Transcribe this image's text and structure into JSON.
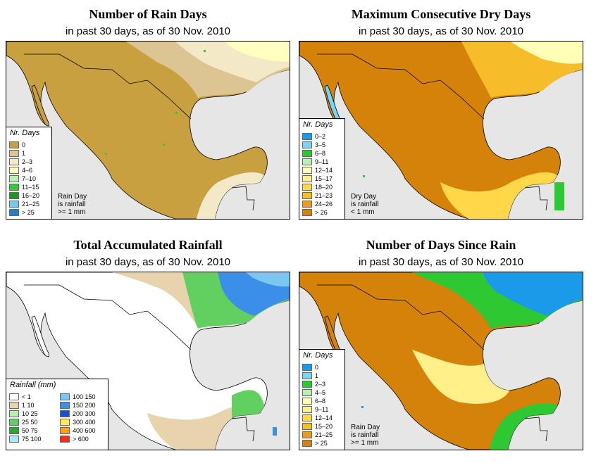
{
  "panels": [
    {
      "title": "Number of Rain Days",
      "subtitle": "in past 30 days, as of  30 Nov. 2010",
      "legend_title": "Nr. Days",
      "note": [
        "Rain Day",
        "is rainfall",
        ">= 1 mm"
      ],
      "classes": [
        {
          "label": "0",
          "color": "#c8a040"
        },
        {
          "label": "1",
          "color": "#dcc592"
        },
        {
          "label": "2–3",
          "color": "#f4e9c6"
        },
        {
          "label": "4–6",
          "color": "#ffffc0"
        },
        {
          "label": "7–10",
          "color": "#b6f2b0"
        },
        {
          "label": "11–15",
          "color": "#36c83a"
        },
        {
          "label": "16–20",
          "color": "#1a9a1e"
        },
        {
          "label": "21–25",
          "color": "#78c8f0"
        },
        {
          "label": "> 25",
          "color": "#2080c8"
        }
      ]
    },
    {
      "title": "Maximum Consecutive Dry Days",
      "subtitle": "in past 30 days, as of  30 Nov. 2010",
      "legend_title": "Nr. Days",
      "note": [
        "Dry Day",
        "is rainfall",
        "< 1 mm"
      ],
      "classes": [
        {
          "label": "0–2",
          "color": "#1a9ae8"
        },
        {
          "label": "3–5",
          "color": "#7ad4f5"
        },
        {
          "label": "6–8",
          "color": "#2ec832"
        },
        {
          "label": "9–11",
          "color": "#b8f0b0"
        },
        {
          "label": "12–14",
          "color": "#ffffb8"
        },
        {
          "label": "15–17",
          "color": "#fff08a"
        },
        {
          "label": "18–20",
          "color": "#ffd84a"
        },
        {
          "label": "21–23",
          "color": "#f7bc2a"
        },
        {
          "label": "24–26",
          "color": "#eb9c16"
        },
        {
          "label": "> 26",
          "color": "#d4820a"
        }
      ]
    },
    {
      "title": "Total Accumulated Rainfall",
      "subtitle": "in past 30 days, as of  30 Nov. 2010",
      "legend_title": "Rainfall (mm)",
      "classes": [
        {
          "label": "< 1",
          "color": "#ffffff"
        },
        {
          "label": "1    10",
          "color": "#e8d4ac"
        },
        {
          "label": "10    25",
          "color": "#b8f0b0"
        },
        {
          "label": "25    50",
          "color": "#62d060"
        },
        {
          "label": "50    75",
          "color": "#28a830"
        },
        {
          "label": "75    100",
          "color": "#a8e8f8"
        },
        {
          "label": "100    150",
          "color": "#7ac8f2"
        },
        {
          "label": "150    200",
          "color": "#3a90e8"
        },
        {
          "label": "200    300",
          "color": "#1a50d0"
        },
        {
          "label": "300    400",
          "color": "#ffe85a"
        },
        {
          "label": "400    600",
          "color": "#ffa018"
        },
        {
          "label": "> 600",
          "color": "#f03018"
        }
      ]
    },
    {
      "title": "Number of Days Since Rain",
      "subtitle": "in past 30 days, as of  30 Nov. 2010",
      "legend_title": "Nr. Days",
      "note": [
        "Rain Day",
        "is rainfall",
        ">= 1 mm"
      ],
      "classes": [
        {
          "label": "0",
          "color": "#1a9ae8"
        },
        {
          "label": "1",
          "color": "#7ad4f5"
        },
        {
          "label": "2–3",
          "color": "#2ec832"
        },
        {
          "label": "4–5",
          "color": "#b8f0b0"
        },
        {
          "label": "6–8",
          "color": "#ffffb8"
        },
        {
          "label": "9–11",
          "color": "#fff08a"
        },
        {
          "label": "12–14",
          "color": "#ffd84a"
        },
        {
          "label": "15–20",
          "color": "#f7bc2a"
        },
        {
          "label": "21–25",
          "color": "#eb9c16"
        },
        {
          "label": "> 25",
          "color": "#d4820a"
        }
      ]
    }
  ]
}
